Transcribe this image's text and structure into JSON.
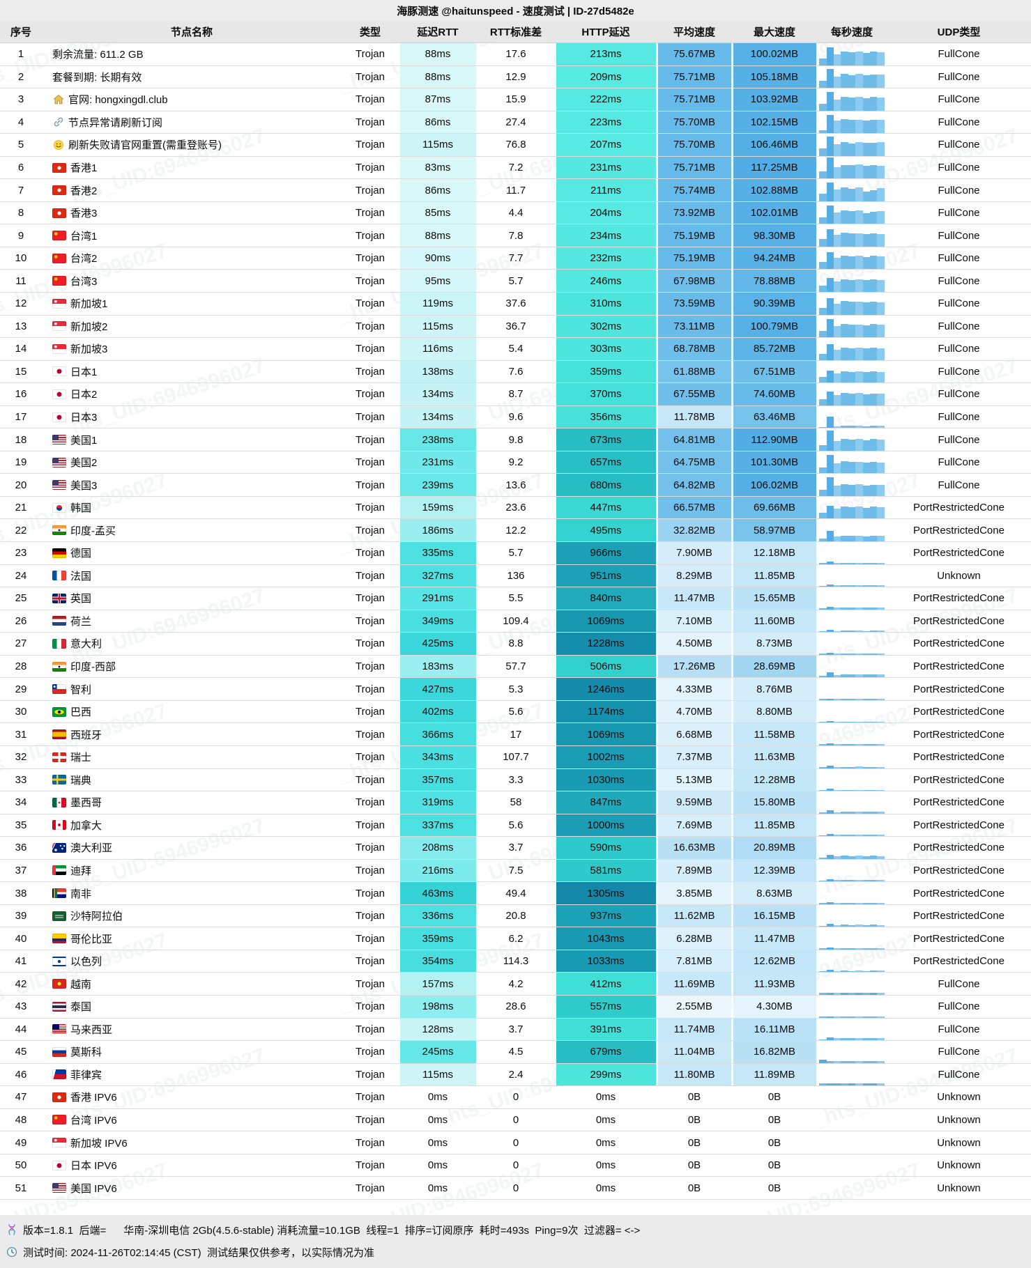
{
  "title": "海豚测速 @haitunspeed - 速度测试 | ID-27d5482e",
  "watermark": "_hts_UID:6946996027",
  "columns": [
    "序号",
    "节点名称",
    "类型",
    "延迟RTT",
    "RTT标准差",
    "HTTP延迟",
    "平均速度",
    "最大速度",
    "每秒速度",
    "UDP类型"
  ],
  "footer": {
    "line1": "版本=1.8.1  后端=      华南-深圳电信 2Gb(4.5.6-stable) 消耗流量=10.1GB  线程=1  排序=订阅原序  耗时=493s  Ping=9次  过滤器= <->",
    "line2": "测试时间: 2024-11-26T02:14:45 (CST)  测试结果仅供参考，以实际情况为准"
  },
  "colors": {
    "title_bg": "#ececec",
    "header_bg": "#e7e7e7",
    "footer_bg": "#ebebeb",
    "border": "#dcdcdc",
    "bar": "#6fbce8",
    "bar_alt": "#8ccbef",
    "bar_peak": "#55ade3",
    "rtt_scale": [
      [
        80,
        218,
        248,
        250
      ],
      [
        140,
        196,
        243,
        245
      ],
      [
        190,
        150,
        238,
        240
      ],
      [
        240,
        102,
        231,
        231
      ],
      [
        300,
        84,
        227,
        227
      ],
      [
        370,
        68,
        221,
        222
      ],
      [
        470,
        52,
        210,
        216
      ]
    ],
    "http_scale": [
      [
        200,
        88,
        234,
        226
      ],
      [
        300,
        78,
        229,
        220
      ],
      [
        420,
        62,
        221,
        214
      ],
      [
        500,
        50,
        210,
        206
      ],
      [
        600,
        45,
        200,
        202
      ],
      [
        680,
        40,
        188,
        196
      ],
      [
        850,
        32,
        169,
        187
      ],
      [
        970,
        27,
        160,
        182
      ],
      [
        1070,
        24,
        151,
        177
      ],
      [
        1310,
        20,
        136,
        169
      ]
    ],
    "speed_scale": [
      [
        0,
        242,
        250,
        254
      ],
      [
        3,
        232,
        246,
        253
      ],
      [
        5,
        225,
        243,
        252
      ],
      [
        8,
        214,
        238,
        251
      ],
      [
        12,
        197,
        231,
        248
      ],
      [
        18,
        181,
        223,
        246
      ],
      [
        30,
        160,
        213,
        243
      ],
      [
        45,
        135,
        202,
        239
      ],
      [
        60,
        121,
        196,
        236
      ],
      [
        70,
        109,
        190,
        234
      ],
      [
        78,
        98,
        184,
        232
      ],
      [
        95,
        88,
        178,
        230
      ],
      [
        120,
        80,
        172,
        228
      ]
    ]
  },
  "rows": [
    {
      "n": 1,
      "icon": "",
      "name": "剩余流量: 611.2 GB",
      "type": "Trojan",
      "rtt": 88,
      "std": "17.6",
      "http": 213,
      "avg": 75.67,
      "max": 100.02,
      "udp": "FullCone",
      "spark": [
        38,
        100,
        62,
        77,
        72,
        76,
        68,
        76,
        73
      ]
    },
    {
      "n": 2,
      "icon": "",
      "name": "套餐到期: 长期有效",
      "type": "Trojan",
      "rtt": 88,
      "std": "12.9",
      "http": 209,
      "avg": 75.71,
      "max": 105.18,
      "udp": "FullCone",
      "spark": [
        40,
        105,
        64,
        76,
        71,
        77,
        70,
        75,
        74
      ]
    },
    {
      "n": 3,
      "icon": "house",
      "name": "官网: hongxingdl.club",
      "type": "Trojan",
      "rtt": 87,
      "std": "15.9",
      "http": 222,
      "avg": 75.71,
      "max": 103.92,
      "udp": "FullCone",
      "spark": [
        36,
        104,
        61,
        78,
        73,
        75,
        69,
        77,
        72
      ]
    },
    {
      "n": 4,
      "icon": "link",
      "name": "节点异常请刷新订阅",
      "type": "Trojan",
      "rtt": 86,
      "std": "27.4",
      "http": 223,
      "avg": 75.7,
      "max": 102.15,
      "udp": "FullCone",
      "spark": [
        18,
        102,
        70,
        78,
        74,
        76,
        71,
        75,
        73
      ]
    },
    {
      "n": 5,
      "icon": "smile",
      "name": "刷新失败请官网重置(需重登账号)",
      "type": "Trojan",
      "rtt": 115,
      "std": "76.8",
      "http": 207,
      "avg": 75.7,
      "max": 106.46,
      "udp": "FullCone",
      "spark": [
        42,
        106,
        65,
        77,
        70,
        76,
        72,
        74,
        75
      ]
    },
    {
      "n": 6,
      "icon": "hk",
      "name": "香港1",
      "type": "Trojan",
      "rtt": 83,
      "std": "7.2",
      "http": 231,
      "avg": 75.71,
      "max": 117.25,
      "udp": "FullCone",
      "spark": [
        39,
        117,
        63,
        76,
        74,
        77,
        70,
        75,
        72
      ]
    },
    {
      "n": 7,
      "icon": "hk",
      "name": "香港2",
      "type": "Trojan",
      "rtt": 86,
      "std": "11.7",
      "http": 211,
      "avg": 75.74,
      "max": 102.88,
      "udp": "FullCone",
      "spark": [
        41,
        103,
        66,
        75,
        70,
        77,
        55,
        60,
        74
      ]
    },
    {
      "n": 8,
      "icon": "hk",
      "name": "香港3",
      "type": "Trojan",
      "rtt": 85,
      "std": "4.4",
      "http": 204,
      "avg": 73.92,
      "max": 102.01,
      "udp": "FullCone",
      "spark": [
        37,
        102,
        62,
        75,
        71,
        74,
        58,
        68,
        70
      ]
    },
    {
      "n": 9,
      "icon": "cn",
      "name": "台湾1",
      "type": "Trojan",
      "rtt": 88,
      "std": "7.8",
      "http": 234,
      "avg": 75.19,
      "max": 98.3,
      "udp": "FullCone",
      "spark": [
        44,
        98,
        65,
        76,
        72,
        75,
        69,
        74,
        71
      ]
    },
    {
      "n": 10,
      "icon": "cn",
      "name": "台湾2",
      "type": "Trojan",
      "rtt": 90,
      "std": "7.7",
      "http": 232,
      "avg": 75.19,
      "max": 94.24,
      "udp": "FullCone",
      "spark": [
        40,
        94,
        63,
        76,
        70,
        74,
        68,
        75,
        72
      ]
    },
    {
      "n": 11,
      "icon": "cn",
      "name": "台湾3",
      "type": "Trojan",
      "rtt": 95,
      "std": "5.7",
      "http": 246,
      "avg": 67.98,
      "max": 78.88,
      "udp": "FullCone",
      "spark": [
        34,
        79,
        57,
        69,
        66,
        70,
        64,
        68,
        67
      ]
    },
    {
      "n": 12,
      "icon": "sg",
      "name": "新加坡1",
      "type": "Trojan",
      "rtt": 119,
      "std": "37.6",
      "http": 310,
      "avg": 73.59,
      "max": 90.39,
      "udp": "FullCone",
      "spark": [
        37,
        90,
        60,
        74,
        70,
        73,
        67,
        72,
        69
      ]
    },
    {
      "n": 13,
      "icon": "sg",
      "name": "新加坡2",
      "type": "Trojan",
      "rtt": 115,
      "std": "36.7",
      "http": 302,
      "avg": 73.11,
      "max": 100.79,
      "udp": "FullCone",
      "spark": [
        36,
        101,
        62,
        74,
        69,
        72,
        66,
        73,
        70
      ]
    },
    {
      "n": 14,
      "icon": "sg",
      "name": "新加坡3",
      "type": "Trojan",
      "rtt": 116,
      "std": "5.4",
      "http": 303,
      "avg": 68.78,
      "max": 85.72,
      "udp": "FullCone",
      "spark": [
        33,
        86,
        58,
        70,
        66,
        69,
        63,
        68,
        66
      ]
    },
    {
      "n": 15,
      "icon": "jp",
      "name": "日本1",
      "type": "Trojan",
      "rtt": 138,
      "std": "7.6",
      "http": 359,
      "avg": 61.88,
      "max": 67.51,
      "udp": "FullCone",
      "spark": [
        30,
        68,
        52,
        63,
        59,
        62,
        57,
        61,
        60
      ]
    },
    {
      "n": 16,
      "icon": "jp",
      "name": "日本2",
      "type": "Trojan",
      "rtt": 134,
      "std": "8.7",
      "http": 370,
      "avg": 67.55,
      "max": 74.6,
      "udp": "FullCone",
      "spark": [
        33,
        75,
        56,
        68,
        64,
        67,
        62,
        66,
        65
      ]
    },
    {
      "n": 17,
      "icon": "jp",
      "name": "日本3",
      "type": "Trojan",
      "rtt": 134,
      "std": "9.6",
      "http": 356,
      "avg": 11.78,
      "max": 63.46,
      "udp": "FullCone",
      "spark": [
        6,
        63,
        10,
        12,
        11,
        12,
        10,
        12,
        11
      ]
    },
    {
      "n": 18,
      "icon": "us",
      "name": "美国1",
      "type": "Trojan",
      "rtt": 238,
      "std": "9.8",
      "http": 673,
      "avg": 64.81,
      "max": 112.9,
      "udp": "FullCone",
      "spark": [
        32,
        113,
        55,
        66,
        61,
        65,
        59,
        64,
        62
      ]
    },
    {
      "n": 19,
      "icon": "us",
      "name": "美国2",
      "type": "Trojan",
      "rtt": 231,
      "std": "9.2",
      "http": 657,
      "avg": 64.75,
      "max": 101.3,
      "udp": "FullCone",
      "spark": [
        31,
        101,
        54,
        66,
        62,
        64,
        60,
        65,
        61
      ]
    },
    {
      "n": 20,
      "icon": "us",
      "name": "美国3",
      "type": "Trojan",
      "rtt": 239,
      "std": "13.6",
      "http": 680,
      "avg": 64.82,
      "max": 106.02,
      "udp": "FullCone",
      "spark": [
        33,
        106,
        56,
        65,
        61,
        66,
        59,
        63,
        62
      ]
    },
    {
      "n": 21,
      "icon": "kr",
      "name": "韩国",
      "type": "Trojan",
      "rtt": 159,
      "std": "23.6",
      "http": 447,
      "avg": 66.57,
      "max": 69.66,
      "udp": "PortRestrictedCone",
      "spark": [
        33,
        70,
        56,
        67,
        64,
        66,
        61,
        66,
        63
      ]
    },
    {
      "n": 22,
      "icon": "in",
      "name": "印度-孟买",
      "type": "Trojan",
      "rtt": 186,
      "std": "12.2",
      "http": 495,
      "avg": 32.82,
      "max": 58.97,
      "udp": "PortRestrictedCone",
      "spark": [
        16,
        59,
        27,
        33,
        31,
        33,
        29,
        32,
        31
      ]
    },
    {
      "n": 23,
      "icon": "de",
      "name": "德国",
      "type": "Trojan",
      "rtt": 335,
      "std": "5.7",
      "http": 966,
      "avg": 7.9,
      "max": 12.18,
      "udp": "PortRestrictedCone",
      "spark": [
        4,
        12,
        7,
        8,
        7,
        8,
        7,
        8,
        7
      ]
    },
    {
      "n": 24,
      "icon": "fr",
      "name": "法国",
      "type": "Trojan",
      "rtt": 327,
      "std": "136",
      "http": 951,
      "avg": 8.29,
      "max": 11.85,
      "udp": "Unknown",
      "spark": [
        4,
        12,
        7,
        8,
        8,
        8,
        7,
        8,
        8
      ]
    },
    {
      "n": 25,
      "icon": "gb",
      "name": "英国",
      "type": "Trojan",
      "rtt": 291,
      "std": "5.5",
      "http": 840,
      "avg": 11.47,
      "max": 15.65,
      "udp": "PortRestrictedCone",
      "spark": [
        6,
        16,
        9,
        12,
        11,
        12,
        10,
        11,
        11
      ]
    },
    {
      "n": 26,
      "icon": "nl",
      "name": "荷兰",
      "type": "Trojan",
      "rtt": 349,
      "std": "109.4",
      "http": 1069,
      "avg": 7.1,
      "max": 11.6,
      "udp": "PortRestrictedCone",
      "spark": [
        3,
        12,
        6,
        7,
        7,
        7,
        6,
        7,
        7
      ]
    },
    {
      "n": 27,
      "icon": "it",
      "name": "意大利",
      "type": "Trojan",
      "rtt": 425,
      "std": "8.8",
      "http": 1228,
      "avg": 4.5,
      "max": 8.73,
      "udp": "PortRestrictedCone",
      "spark": [
        2,
        9,
        4,
        5,
        4,
        5,
        4,
        5,
        4
      ]
    },
    {
      "n": 28,
      "icon": "in",
      "name": "印度-西部",
      "type": "Trojan",
      "rtt": 183,
      "std": "57.7",
      "http": 506,
      "avg": 17.26,
      "max": 28.69,
      "udp": "PortRestrictedCone",
      "spark": [
        9,
        29,
        14,
        18,
        16,
        17,
        15,
        17,
        16
      ]
    },
    {
      "n": 29,
      "icon": "cl",
      "name": "智利",
      "type": "Trojan",
      "rtt": 427,
      "std": "5.3",
      "http": 1246,
      "avg": 4.33,
      "max": 8.76,
      "udp": "PortRestrictedCone",
      "spark": [
        2,
        9,
        4,
        4,
        4,
        5,
        4,
        4,
        4
      ]
    },
    {
      "n": 30,
      "icon": "br",
      "name": "巴西",
      "type": "Trojan",
      "rtt": 402,
      "std": "5.6",
      "http": 1174,
      "avg": 4.7,
      "max": 8.8,
      "udp": "PortRestrictedCone",
      "spark": [
        2,
        9,
        4,
        5,
        4,
        5,
        4,
        5,
        5
      ]
    },
    {
      "n": 31,
      "icon": "es",
      "name": "西班牙",
      "type": "Trojan",
      "rtt": 366,
      "std": "17",
      "http": 1069,
      "avg": 6.68,
      "max": 11.58,
      "udp": "PortRestrictedCone",
      "spark": [
        3,
        12,
        6,
        7,
        6,
        7,
        6,
        7,
        7
      ]
    },
    {
      "n": 32,
      "icon": "ch",
      "name": "瑞士",
      "type": "Trojan",
      "rtt": 343,
      "std": "107.7",
      "http": 1002,
      "avg": 7.37,
      "max": 11.63,
      "udp": "PortRestrictedCone",
      "spark": [
        4,
        12,
        6,
        7,
        7,
        8,
        7,
        7,
        7
      ]
    },
    {
      "n": 33,
      "icon": "se",
      "name": "瑞典",
      "type": "Trojan",
      "rtt": 357,
      "std": "3.3",
      "http": 1030,
      "avg": 5.13,
      "max": 12.28,
      "udp": "PortRestrictedCone",
      "spark": [
        3,
        12,
        4,
        5,
        5,
        5,
        5,
        5,
        5
      ]
    },
    {
      "n": 34,
      "icon": "mx",
      "name": "墨西哥",
      "type": "Trojan",
      "rtt": 319,
      "std": "58",
      "http": 847,
      "avg": 9.59,
      "max": 15.8,
      "udp": "PortRestrictedCone",
      "spark": [
        5,
        16,
        8,
        10,
        9,
        10,
        9,
        10,
        9
      ]
    },
    {
      "n": 35,
      "icon": "ca",
      "name": "加拿大",
      "type": "Trojan",
      "rtt": 337,
      "std": "5.6",
      "http": 1000,
      "avg": 7.69,
      "max": 11.85,
      "udp": "PortRestrictedCone",
      "spark": [
        4,
        12,
        7,
        8,
        7,
        8,
        7,
        8,
        7
      ]
    },
    {
      "n": 36,
      "icon": "au",
      "name": "澳大利亚",
      "type": "Trojan",
      "rtt": 208,
      "std": "3.7",
      "http": 590,
      "avg": 16.63,
      "max": 20.89,
      "udp": "PortRestrictedCone",
      "spark": [
        8,
        21,
        14,
        17,
        16,
        17,
        15,
        17,
        16
      ]
    },
    {
      "n": 37,
      "icon": "ae",
      "name": "迪拜",
      "type": "Trojan",
      "rtt": 216,
      "std": "7.5",
      "http": 581,
      "avg": 7.89,
      "max": 12.39,
      "udp": "PortRestrictedCone",
      "spark": [
        4,
        12,
        7,
        8,
        8,
        8,
        7,
        8,
        8
      ]
    },
    {
      "n": 38,
      "icon": "za",
      "name": "南非",
      "type": "Trojan",
      "rtt": 463,
      "std": "49.4",
      "http": 1305,
      "avg": 3.85,
      "max": 8.63,
      "udp": "PortRestrictedCone",
      "spark": [
        2,
        9,
        3,
        4,
        4,
        4,
        3,
        4,
        4
      ]
    },
    {
      "n": 39,
      "icon": "sa",
      "name": "沙特阿拉伯",
      "type": "Trojan",
      "rtt": 336,
      "std": "20.8",
      "http": 937,
      "avg": 11.62,
      "max": 16.15,
      "udp": "PortRestrictedCone",
      "spark": [
        6,
        16,
        10,
        12,
        11,
        12,
        11,
        12,
        11
      ]
    },
    {
      "n": 40,
      "icon": "co",
      "name": "哥伦比亚",
      "type": "Trojan",
      "rtt": 359,
      "std": "6.2",
      "http": 1043,
      "avg": 6.28,
      "max": 11.47,
      "udp": "PortRestrictedCone",
      "spark": [
        3,
        11,
        5,
        6,
        6,
        7,
        6,
        6,
        6
      ]
    },
    {
      "n": 41,
      "icon": "il",
      "name": "以色列",
      "type": "Trojan",
      "rtt": 354,
      "std": "114.3",
      "http": 1033,
      "avg": 7.81,
      "max": 12.62,
      "udp": "PortRestrictedCone",
      "spark": [
        4,
        13,
        7,
        8,
        7,
        8,
        7,
        8,
        8
      ]
    },
    {
      "n": 42,
      "icon": "vn",
      "name": "越南",
      "type": "Trojan",
      "rtt": 157,
      "std": "4.2",
      "http": 412,
      "avg": 11.69,
      "max": 11.93,
      "udp": "FullCone",
      "spark": [
        11,
        12,
        11,
        12,
        11,
        12,
        11,
        12,
        11
      ]
    },
    {
      "n": 43,
      "icon": "th",
      "name": "泰国",
      "type": "Trojan",
      "rtt": 198,
      "std": "28.6",
      "http": 557,
      "avg": 2.55,
      "max": 4.3,
      "udp": "FullCone",
      "spark": [
        1,
        4,
        2,
        3,
        2,
        3,
        2,
        3,
        3
      ]
    },
    {
      "n": 44,
      "icon": "my",
      "name": "马来西亚",
      "type": "Trojan",
      "rtt": 128,
      "std": "3.7",
      "http": 391,
      "avg": 11.74,
      "max": 16.11,
      "udp": "FullCone",
      "spark": [
        6,
        16,
        10,
        12,
        11,
        12,
        11,
        12,
        11
      ]
    },
    {
      "n": 45,
      "icon": "ru",
      "name": "莫斯科",
      "type": "Trojan",
      "rtt": 245,
      "std": "4.5",
      "http": 679,
      "avg": 11.04,
      "max": 16.82,
      "udp": "FullCone",
      "spark": [
        17,
        11,
        11,
        12,
        11,
        11,
        12,
        11,
        11
      ]
    },
    {
      "n": 46,
      "icon": "ph",
      "name": "菲律宾",
      "type": "Trojan",
      "rtt": 115,
      "std": "2.4",
      "http": 299,
      "avg": 11.8,
      "max": 11.89,
      "udp": "FullCone",
      "spark": [
        11,
        12,
        12,
        11,
        12,
        11,
        12,
        12,
        11
      ]
    },
    {
      "n": 47,
      "icon": "hk",
      "name": "香港 IPV6",
      "type": "Trojan",
      "rtt": 0,
      "std": "0",
      "http": 0,
      "avg": 0,
      "max": 0,
      "udp": "Unknown",
      "spark": []
    },
    {
      "n": 48,
      "icon": "cn",
      "name": "台湾 IPV6",
      "type": "Trojan",
      "rtt": 0,
      "std": "0",
      "http": 0,
      "avg": 0,
      "max": 0,
      "udp": "Unknown",
      "spark": []
    },
    {
      "n": 49,
      "icon": "sg",
      "name": "新加坡 IPV6",
      "type": "Trojan",
      "rtt": 0,
      "std": "0",
      "http": 0,
      "avg": 0,
      "max": 0,
      "udp": "Unknown",
      "spark": []
    },
    {
      "n": 50,
      "icon": "jp",
      "name": "日本 IPV6",
      "type": "Trojan",
      "rtt": 0,
      "std": "0",
      "http": 0,
      "avg": 0,
      "max": 0,
      "udp": "Unknown",
      "spark": []
    },
    {
      "n": 51,
      "icon": "us",
      "name": "美国 IPV6",
      "type": "Trojan",
      "rtt": 0,
      "std": "0",
      "http": 0,
      "avg": 0,
      "max": 0,
      "udp": "Unknown",
      "spark": []
    }
  ]
}
